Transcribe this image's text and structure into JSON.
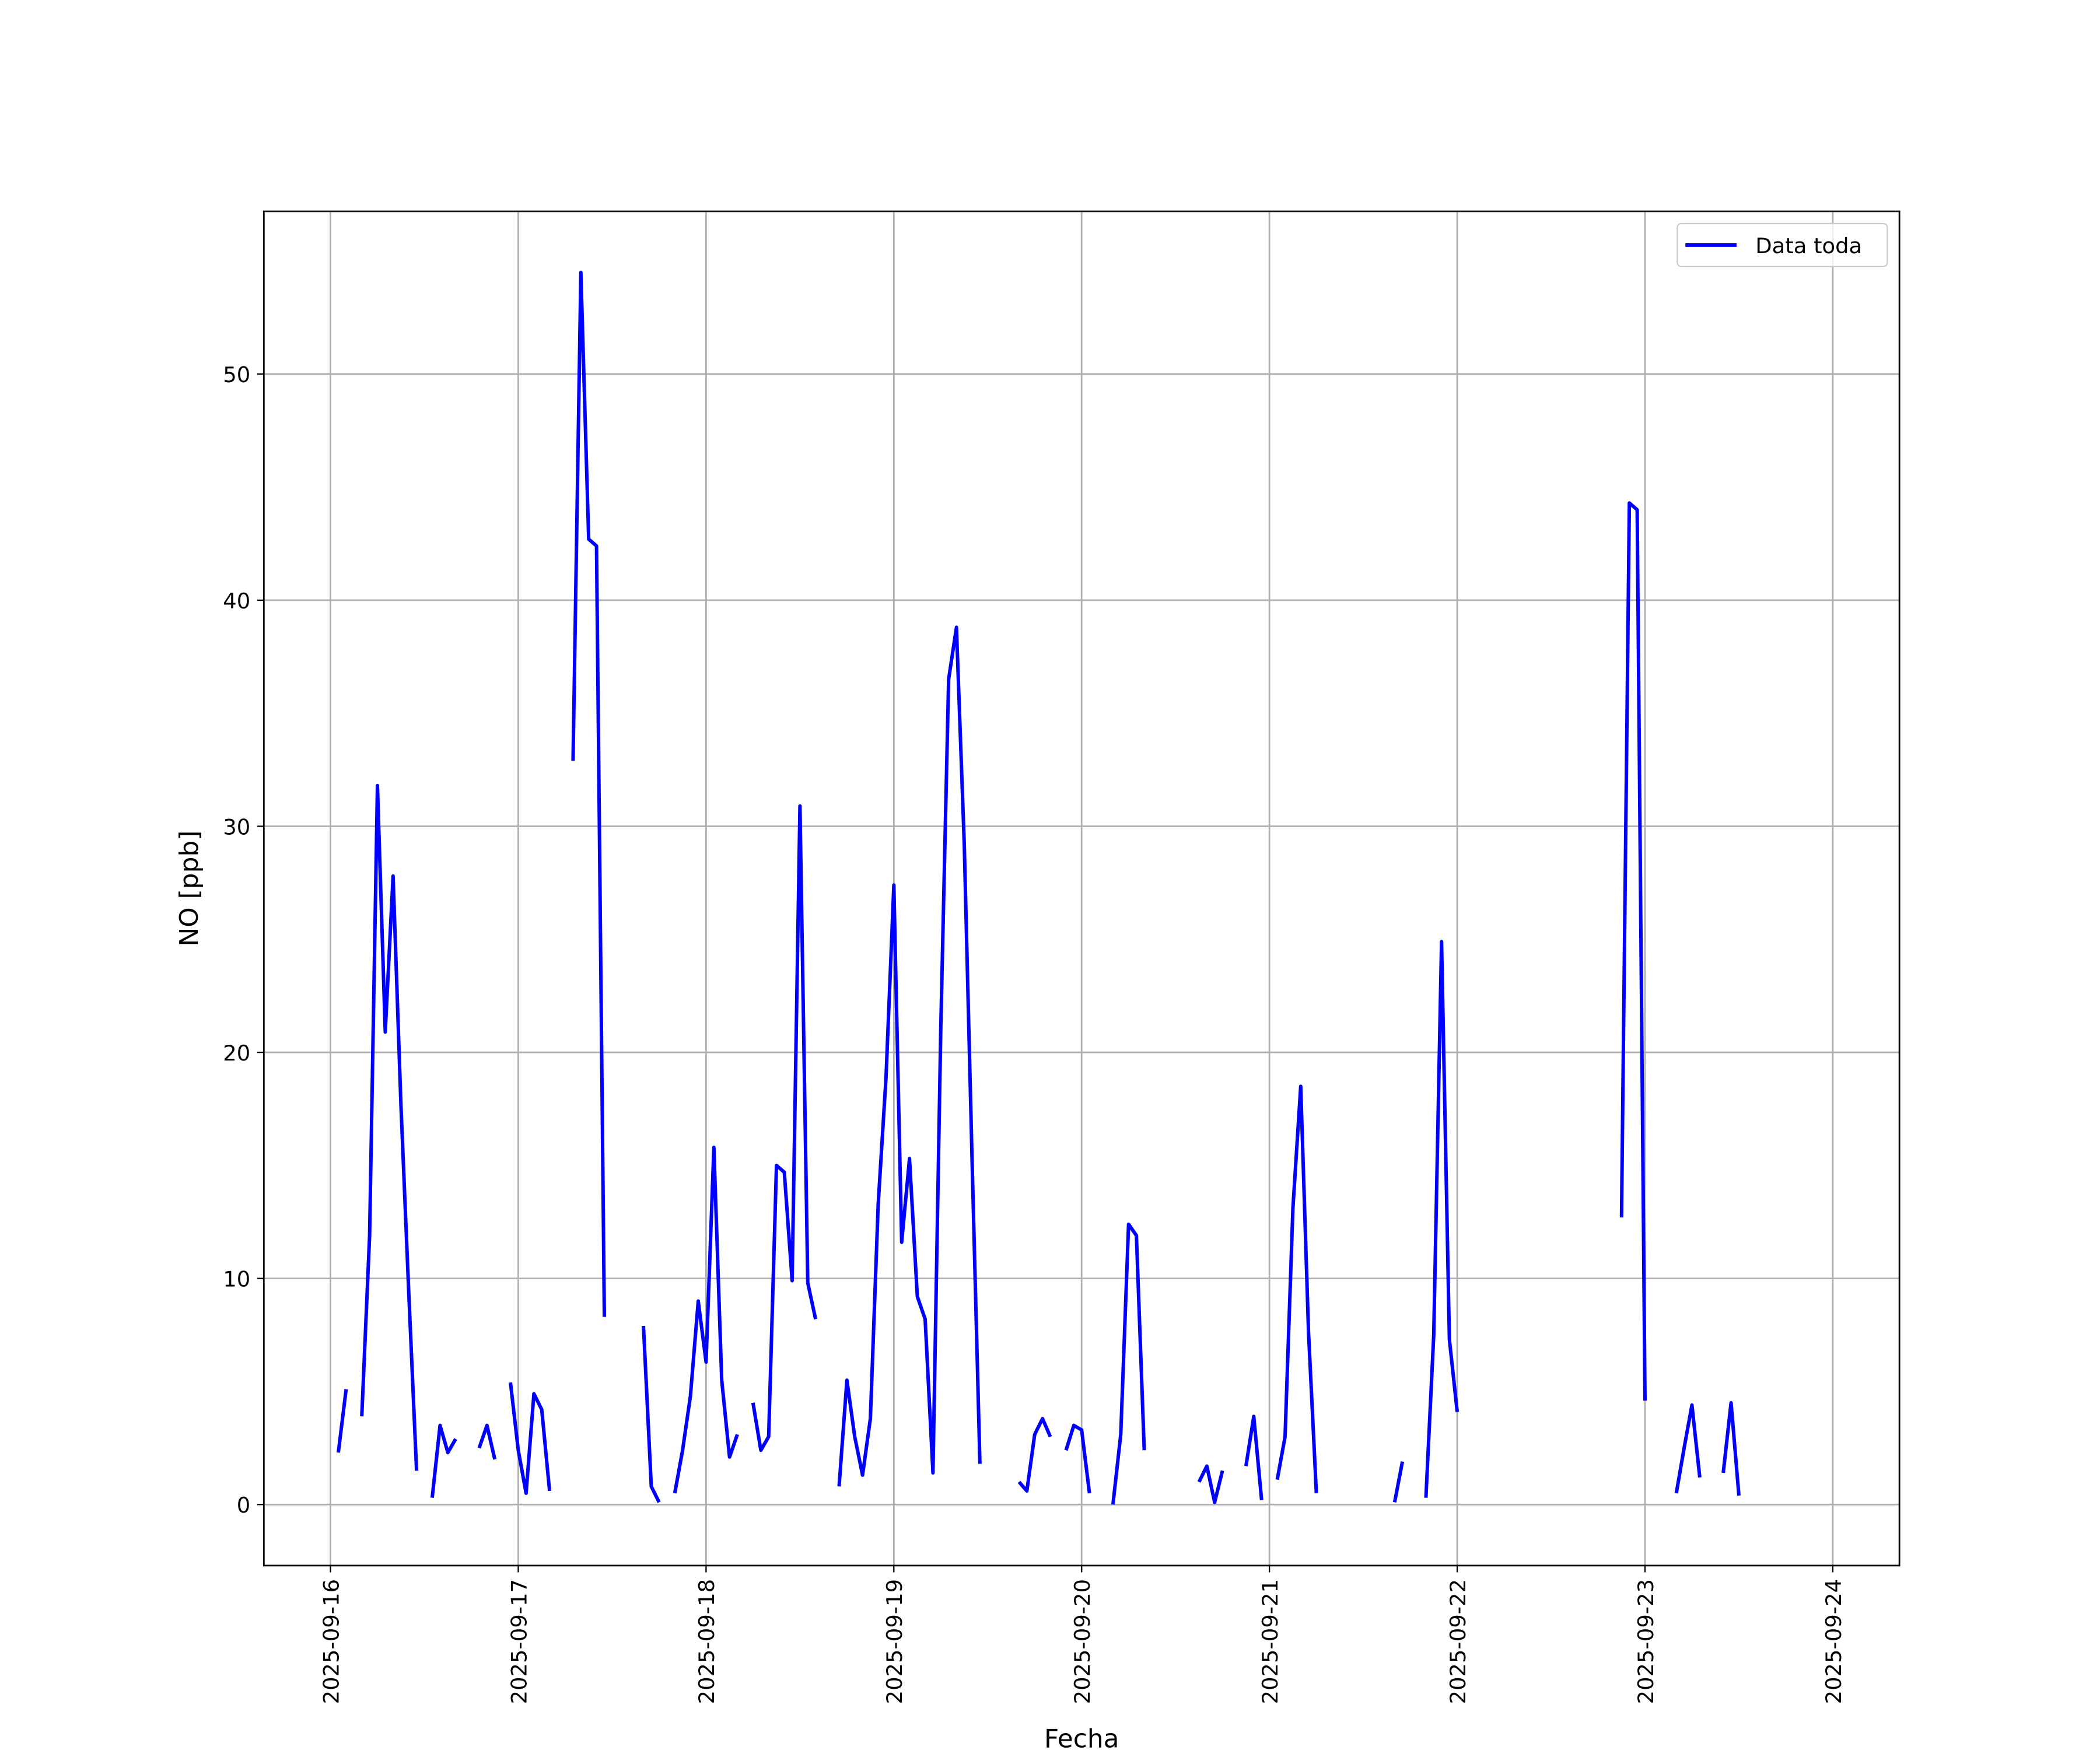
{
  "chart_data": {
    "type": "line",
    "xlabel": "Fecha",
    "ylabel": "NO [ppb]",
    "x": [
      "2025-09-16 01:00",
      "2025-09-16 02:00",
      "2025-09-16 03:00",
      "2025-09-16 04:00",
      "2025-09-16 05:00",
      "2025-09-16 06:00",
      "2025-09-16 07:00",
      "2025-09-16 08:00",
      "2025-09-16 09:00",
      "2025-09-16 10:00",
      "2025-09-16 11:00",
      "2025-09-16 12:00",
      "2025-09-16 13:00",
      "2025-09-16 14:00",
      "2025-09-16 15:00",
      "2025-09-16 16:00",
      "2025-09-16 17:00",
      "2025-09-16 19:00",
      "2025-09-16 20:00",
      "2025-09-16 21:00",
      "2025-09-16 22:00",
      "2025-09-16 23:00",
      "2025-09-17 00:00",
      "2025-09-17 01:00",
      "2025-09-17 02:00",
      "2025-09-17 03:00",
      "2025-09-17 04:00",
      "2025-09-17 05:00",
      "2025-09-17 07:00",
      "2025-09-17 08:00",
      "2025-09-17 09:00",
      "2025-09-17 10:00",
      "2025-09-17 11:00",
      "2025-09-17 12:00",
      "2025-09-17 16:00",
      "2025-09-17 17:00",
      "2025-09-17 18:00",
      "2025-09-17 19:00",
      "2025-09-17 20:00",
      "2025-09-17 21:00",
      "2025-09-17 22:00",
      "2025-09-17 23:00",
      "2025-09-18 00:00",
      "2025-09-18 01:00",
      "2025-09-18 02:00",
      "2025-09-18 03:00",
      "2025-09-18 04:00",
      "2025-09-18 05:00",
      "2025-09-18 06:00",
      "2025-09-18 07:00",
      "2025-09-18 08:00",
      "2025-09-18 09:00",
      "2025-09-18 10:00",
      "2025-09-18 11:00",
      "2025-09-18 12:00",
      "2025-09-18 13:00",
      "2025-09-18 14:00",
      "2025-09-18 15:00",
      "2025-09-18 17:00",
      "2025-09-18 18:00",
      "2025-09-18 19:00",
      "2025-09-18 20:00",
      "2025-09-18 21:00",
      "2025-09-18 22:00",
      "2025-09-18 23:00",
      "2025-09-19 00:00",
      "2025-09-19 01:00",
      "2025-09-19 02:00",
      "2025-09-19 03:00",
      "2025-09-19 04:00",
      "2025-09-19 05:00",
      "2025-09-19 06:00",
      "2025-09-19 07:00",
      "2025-09-19 08:00",
      "2025-09-19 09:00",
      "2025-09-19 10:00",
      "2025-09-19 11:00",
      "2025-09-19 12:00",
      "2025-09-19 16:00",
      "2025-09-19 17:00",
      "2025-09-19 18:00",
      "2025-09-19 19:00",
      "2025-09-19 20:00",
      "2025-09-19 21:00",
      "2025-09-19 22:00",
      "2025-09-19 23:00",
      "2025-09-20 00:00",
      "2025-09-20 01:00",
      "2025-09-20 02:00",
      "2025-09-20 04:00",
      "2025-09-20 05:00",
      "2025-09-20 06:00",
      "2025-09-20 07:00",
      "2025-09-20 08:00",
      "2025-09-20 09:00",
      "2025-09-20 15:00",
      "2025-09-20 16:00",
      "2025-09-20 17:00",
      "2025-09-20 18:00",
      "2025-09-20 19:00",
      "2025-09-20 21:00",
      "2025-09-20 22:00",
      "2025-09-20 23:00",
      "2025-09-21 00:00",
      "2025-09-21 01:00",
      "2025-09-21 02:00",
      "2025-09-21 03:00",
      "2025-09-21 04:00",
      "2025-09-21 05:00",
      "2025-09-21 06:00",
      "2025-09-21 07:00",
      "2025-09-21 16:00",
      "2025-09-21 17:00",
      "2025-09-21 18:00",
      "2025-09-21 20:00",
      "2025-09-21 21:00",
      "2025-09-21 22:00",
      "2025-09-21 23:00",
      "2025-09-22 00:00",
      "2025-09-22 01:00",
      "2025-09-22 21:00",
      "2025-09-22 22:00",
      "2025-09-22 23:00",
      "2025-09-23 00:00",
      "2025-09-23 01:00",
      "2025-09-23 04:00",
      "2025-09-23 05:00",
      "2025-09-23 06:00",
      "2025-09-23 07:00",
      "2025-09-23 08:00",
      "2025-09-23 10:00",
      "2025-09-23 11:00",
      "2025-09-23 12:00"
    ],
    "series": [
      {
        "name": "Data toda",
        "color": "#0000ff",
        "values": [
          2.3,
          5.1,
          null,
          3.9,
          11.9,
          31.8,
          20.9,
          27.8,
          17.7,
          9.4,
          1.5,
          null,
          0.3,
          3.5,
          2.3,
          2.9,
          null,
          2.5,
          3.5,
          2.0,
          null,
          5.4,
          2.4,
          0.5,
          4.9,
          4.2,
          0.6,
          null,
          32.9,
          54.5,
          42.7,
          42.4,
          8.3,
          null,
          7.9,
          0.8,
          0.1,
          null,
          0.5,
          2.4,
          4.8,
          9.0,
          6.3,
          15.8,
          5.5,
          2.1,
          3.1,
          null,
          4.5,
          2.4,
          3.0,
          15.0,
          14.7,
          9.9,
          30.9,
          9.8,
          8.2,
          null,
          0.8,
          5.5,
          3.0,
          1.3,
          3.8,
          13.3,
          18.9,
          27.4,
          11.6,
          15.3,
          9.2,
          8.2,
          1.4,
          21.1,
          36.5,
          38.8,
          29.2,
          15.2,
          1.8,
          null,
          1.0,
          0.6,
          3.1,
          3.8,
          3.0,
          null,
          2.4,
          3.5,
          3.3,
          0.5,
          null,
          0.0,
          3.1,
          12.4,
          11.9,
          2.4,
          null,
          1.0,
          1.7,
          0.1,
          1.5,
          null,
          1.7,
          3.9,
          0.2,
          null,
          1.1,
          3.0,
          13.1,
          18.5,
          7.6,
          0.5,
          null,
          0.1,
          1.9,
          null,
          0.3,
          7.5,
          24.9,
          7.3,
          4.1,
          null,
          12.7,
          44.3,
          44.0,
          4.6,
          null,
          0.5,
          2.5,
          4.4,
          1.2,
          null,
          1.4,
          4.5,
          0.4
        ]
      }
    ],
    "xlim": [
      "2025-09-15 15:29",
      "2025-09-24 08:31"
    ],
    "xticks": [
      "2025-09-16",
      "2025-09-17",
      "2025-09-18",
      "2025-09-19",
      "2025-09-20",
      "2025-09-21",
      "2025-09-22",
      "2025-09-23",
      "2025-09-24"
    ],
    "ylim": [
      -2.7,
      57.2
    ],
    "yticks": [
      0,
      10,
      20,
      30,
      40,
      50
    ],
    "grid": true,
    "legend": "upper right"
  }
}
